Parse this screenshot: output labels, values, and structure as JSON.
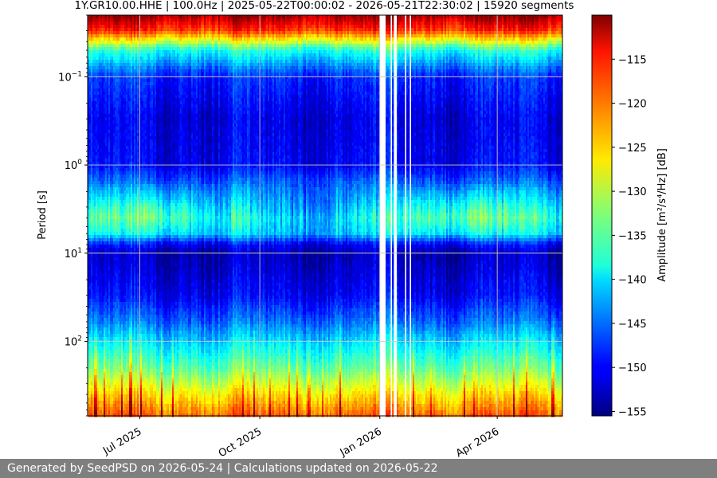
{
  "chart_data": {
    "type": "heatmap",
    "title": "1Y.GR10.00.HHE | 100.0Hz | 2025-05-22T00:00:02 - 2026-05-21T22:30:02 | 15920 segments",
    "xlabel": "",
    "ylabel": "Period [s]",
    "x_range": [
      "2025-05-22",
      "2026-05-21"
    ],
    "x_ticks": [
      {
        "date": "2025-07-01",
        "label": "Jul 2025"
      },
      {
        "date": "2025-10-01",
        "label": "Oct 2025"
      },
      {
        "date": "2026-01-01",
        "label": "Jan 2026"
      },
      {
        "date": "2026-04-01",
        "label": "Apr 2026"
      }
    ],
    "y_scale": "log",
    "y_inverted": true,
    "y_range": [
      0.02,
      700
    ],
    "y_ticks": [
      {
        "value": 0.1,
        "base": "10",
        "exp": "−1"
      },
      {
        "value": 1,
        "base": "10",
        "exp": "0"
      },
      {
        "value": 10,
        "base": "10",
        "exp": "1"
      },
      {
        "value": 100,
        "base": "10",
        "exp": "2"
      }
    ],
    "grid": true,
    "colorbar": {
      "label": "Amplitude [m²/s⁴/Hz] [dB]",
      "colormap": "jet",
      "range": [
        -155.5,
        -110
      ],
      "ticks": [
        -115,
        -120,
        -125,
        -130,
        -135,
        -140,
        -145,
        -150,
        -155
      ],
      "tick_labels": [
        "−115",
        "−120",
        "−125",
        "−130",
        "−135",
        "−140",
        "−145",
        "−150",
        "−155"
      ]
    },
    "gaps": [
      {
        "start": "2026-01-01",
        "end": "2026-01-05"
      },
      {
        "start": "2026-01-09",
        "end": "2026-01-10"
      },
      {
        "start": "2026-01-12",
        "end": "2026-01-14"
      },
      {
        "start": "2026-01-20",
        "end": "2026-01-21"
      },
      {
        "start": "2026-01-24",
        "end": "2026-01-25"
      }
    ],
    "spectral_profile": [
      {
        "period": 0.02,
        "db": -111
      },
      {
        "period": 0.03,
        "db": -118
      },
      {
        "period": 0.05,
        "db": -137
      },
      {
        "period": 0.1,
        "db": -148
      },
      {
        "period": 0.3,
        "db": -151
      },
      {
        "period": 1,
        "db": -150
      },
      {
        "period": 2,
        "db": -143
      },
      {
        "period": 4,
        "db": -137
      },
      {
        "period": 6,
        "db": -140
      },
      {
        "period": 8,
        "db": -150
      },
      {
        "period": 10,
        "db": -153
      },
      {
        "period": 30,
        "db": -150
      },
      {
        "period": 60,
        "db": -145
      },
      {
        "period": 100,
        "db": -140
      },
      {
        "period": 200,
        "db": -134
      },
      {
        "period": 400,
        "db": -126
      },
      {
        "period": 700,
        "db": -120
      }
    ]
  },
  "footer": {
    "text": "Generated by SeedPSD on 2026-05-24 | Calculations updated on 2026-05-22"
  }
}
